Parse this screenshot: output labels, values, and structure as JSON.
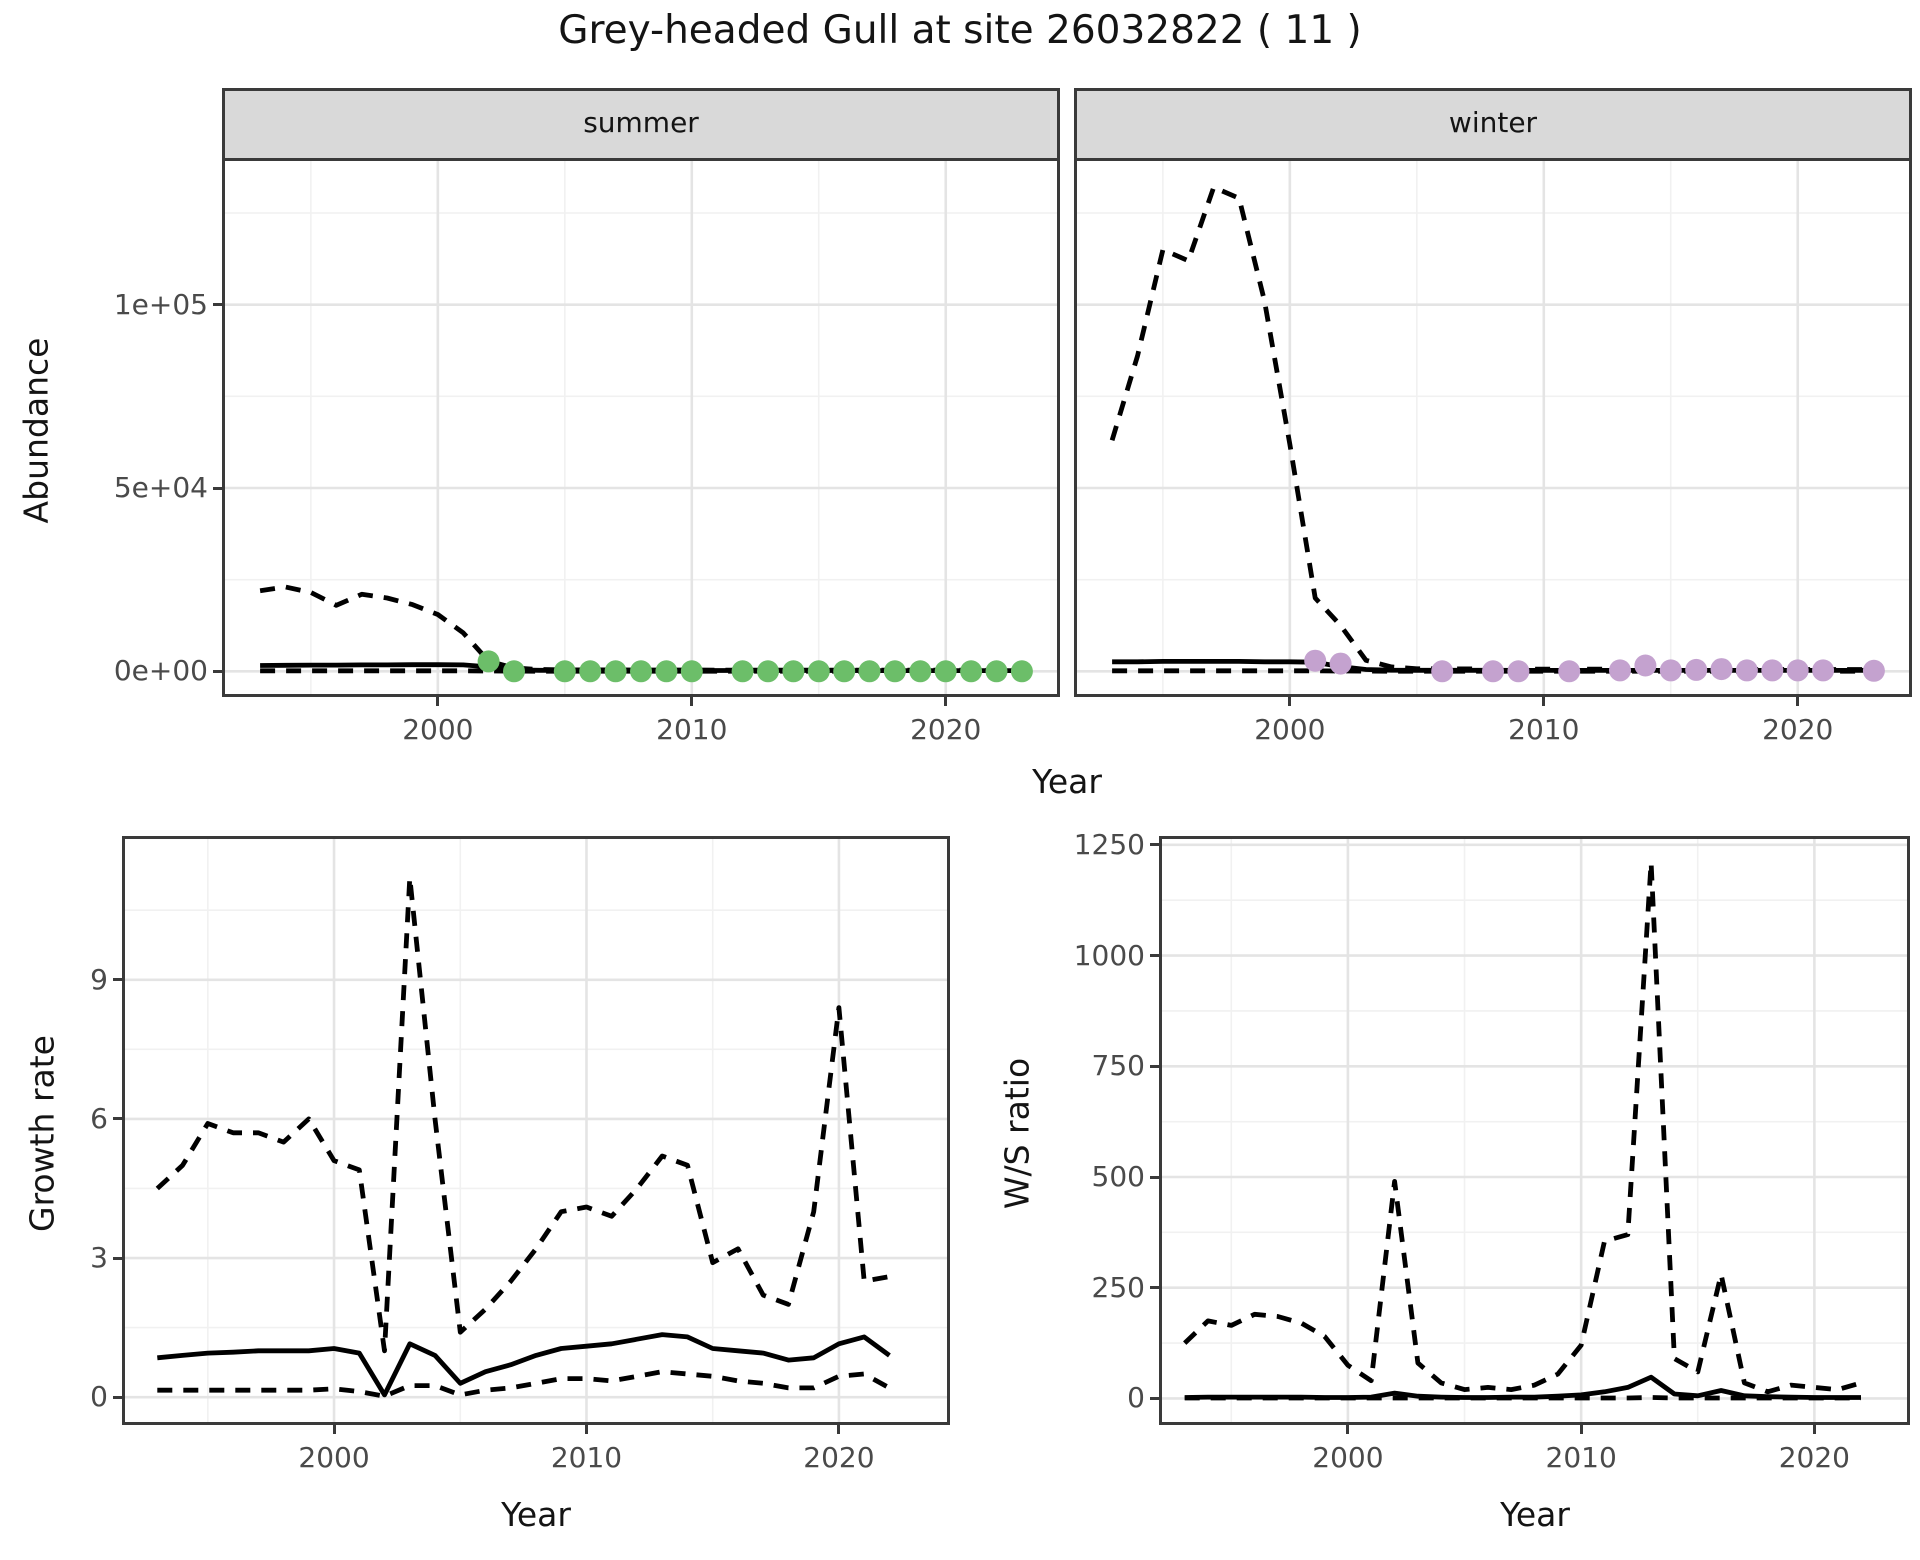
{
  "title": "Grey-headed Gull at site 26032822 ( 11 )",
  "top_row": {
    "xlabel": "Year",
    "ylabel": "Abundance",
    "facets": [
      "summer",
      "winter"
    ]
  },
  "colors": {
    "summer_point": "#6CBE69",
    "winter_point": "#C4A2CF",
    "line": "#000000",
    "strip_background": "#D9D9D9",
    "tick_text": "#4a4a4a",
    "grid_major": "#e4e4e4",
    "grid_minor": "#f1f1f1"
  },
  "chart_data": [
    {
      "id": "abundance-summer",
      "type": "line",
      "facet_label": "summer",
      "xlabel": "Year",
      "ylabel": "Abundance",
      "xlim": [
        1991.5,
        2024.5
      ],
      "ylim": [
        -7000,
        140000
      ],
      "xticks": {
        "values": [
          2000,
          2010,
          2020
        ],
        "labels": [
          "2000",
          "2010",
          "2020"
        ],
        "minor": [
          1995,
          2005,
          2015
        ]
      },
      "yticks": {
        "values": [
          0,
          50000,
          100000
        ],
        "labels": [
          "0e+00",
          "5e+04",
          "1e+05"
        ],
        "minor": [
          25000,
          75000,
          125000
        ]
      },
      "show_y_ticks": true,
      "show_x_ticks": true,
      "series": [
        {
          "name": "upper-ci",
          "style": "dashed",
          "x": [
            1993,
            1994,
            1995,
            1996,
            1997,
            1998,
            1999,
            2000,
            2001,
            2002,
            2003,
            2004,
            2005,
            2006,
            2007,
            2008,
            2009,
            2010,
            2011,
            2012,
            2013,
            2014,
            2015,
            2016,
            2017,
            2018,
            2019,
            2020,
            2021,
            2022,
            2023
          ],
          "y": [
            22000,
            23000,
            21500,
            18000,
            21000,
            20000,
            18200,
            15500,
            10500,
            2800,
            900,
            500,
            400,
            400,
            380,
            370,
            360,
            350,
            340,
            340,
            330,
            330,
            320,
            320,
            310,
            310,
            300,
            300,
            300,
            290,
            290
          ]
        },
        {
          "name": "mean",
          "style": "solid",
          "x": [
            1993,
            1994,
            1995,
            1996,
            1997,
            1998,
            1999,
            2000,
            2001,
            2002,
            2003,
            2004,
            2005,
            2006,
            2007,
            2008,
            2009,
            2010,
            2011,
            2012,
            2013,
            2014,
            2015,
            2016,
            2017,
            2018,
            2019,
            2020,
            2021,
            2022,
            2023
          ],
          "y": [
            1600,
            1650,
            1700,
            1700,
            1750,
            1750,
            1800,
            1800,
            1750,
            1200,
            400,
            280,
            260,
            250,
            250,
            250,
            240,
            240,
            230,
            230,
            230,
            220,
            220,
            220,
            210,
            210,
            210,
            200,
            200,
            200,
            200
          ]
        },
        {
          "name": "lower-ci",
          "style": "dashed",
          "x": [
            1993,
            1994,
            1995,
            1996,
            1997,
            1998,
            1999,
            2000,
            2001,
            2002,
            2003,
            2004,
            2005,
            2006,
            2007,
            2008,
            2009,
            2010,
            2011,
            2012,
            2013,
            2014,
            2015,
            2016,
            2017,
            2018,
            2019,
            2020,
            2021,
            2022,
            2023
          ],
          "y": [
            150,
            150,
            150,
            150,
            150,
            150,
            150,
            150,
            140,
            80,
            50,
            40,
            40,
            40,
            40,
            40,
            40,
            40,
            40,
            40,
            40,
            40,
            40,
            40,
            40,
            40,
            40,
            40,
            40,
            40,
            40
          ]
        }
      ],
      "points": {
        "name": "observed-counts",
        "color": "#6CBE69",
        "x": [
          2002,
          2003,
          2005,
          2006,
          2007,
          2008,
          2009,
          2010,
          2012,
          2013,
          2014,
          2015,
          2016,
          2017,
          2018,
          2019,
          2020,
          2021,
          2022,
          2023
        ],
        "y": [
          2700,
          0,
          0,
          0,
          0,
          0,
          0,
          0,
          0,
          0,
          0,
          0,
          0,
          0,
          0,
          0,
          0,
          0,
          0,
          0
        ]
      }
    },
    {
      "id": "abundance-winter",
      "type": "line",
      "facet_label": "winter",
      "xlabel": "Year",
      "ylabel": "Abundance",
      "xlim": [
        1991.5,
        2024.5
      ],
      "ylim": [
        -7000,
        140000
      ],
      "xticks": {
        "values": [
          2000,
          2010,
          2020
        ],
        "labels": [
          "2000",
          "2010",
          "2020"
        ],
        "minor": [
          1995,
          2005,
          2015
        ]
      },
      "yticks": {
        "values": [
          0,
          50000,
          100000
        ],
        "labels": [
          "0e+00",
          "5e+04",
          "1e+05"
        ],
        "minor": [
          25000,
          75000,
          125000
        ]
      },
      "show_y_ticks": false,
      "show_x_ticks": true,
      "series": [
        {
          "name": "upper-ci",
          "style": "dashed",
          "x": [
            1993,
            1994,
            1995,
            1996,
            1997,
            1998,
            1999,
            2000,
            2001,
            2002,
            2003,
            2004,
            2005,
            2006,
            2007,
            2008,
            2009,
            2010,
            2011,
            2012,
            2013,
            2014,
            2015,
            2016,
            2017,
            2018,
            2019,
            2020,
            2021,
            2022,
            2023
          ],
          "y": [
            63000,
            86000,
            115000,
            112000,
            132000,
            129000,
            101000,
            62000,
            20000,
            12500,
            3000,
            1200,
            700,
            700,
            650,
            650,
            600,
            600,
            600,
            600,
            600,
            600,
            550,
            550,
            550,
            550,
            500,
            500,
            500,
            500,
            500
          ]
        },
        {
          "name": "mean",
          "style": "solid",
          "x": [
            1993,
            1994,
            1995,
            1996,
            1997,
            1998,
            1999,
            2000,
            2001,
            2002,
            2003,
            2004,
            2005,
            2006,
            2007,
            2008,
            2009,
            2010,
            2011,
            2012,
            2013,
            2014,
            2015,
            2016,
            2017,
            2018,
            2019,
            2020,
            2021,
            2022,
            2023
          ],
          "y": [
            2600,
            2600,
            2700,
            2700,
            2700,
            2700,
            2600,
            2600,
            2500,
            1300,
            500,
            300,
            280,
            280,
            270,
            270,
            260,
            260,
            260,
            260,
            260,
            260,
            260,
            260,
            250,
            250,
            250,
            250,
            250,
            250,
            250
          ]
        },
        {
          "name": "lower-ci",
          "style": "dashed",
          "x": [
            1993,
            1994,
            1995,
            1996,
            1997,
            1998,
            1999,
            2000,
            2001,
            2002,
            2003,
            2004,
            2005,
            2006,
            2007,
            2008,
            2009,
            2010,
            2011,
            2012,
            2013,
            2014,
            2015,
            2016,
            2017,
            2018,
            2019,
            2020,
            2021,
            2022,
            2023
          ],
          "y": [
            150,
            150,
            150,
            150,
            150,
            150,
            150,
            150,
            140,
            80,
            50,
            40,
            40,
            40,
            40,
            40,
            40,
            40,
            40,
            40,
            40,
            40,
            40,
            40,
            40,
            40,
            40,
            40,
            40,
            40,
            40
          ]
        }
      ],
      "points": {
        "name": "observed-counts",
        "color": "#C4A2CF",
        "x": [
          2001,
          2002,
          2006,
          2008,
          2009,
          2011,
          2013,
          2014,
          2015,
          2016,
          2017,
          2018,
          2019,
          2020,
          2021,
          2023
        ],
        "y": [
          2900,
          2100,
          0,
          0,
          0,
          0,
          250,
          1600,
          250,
          400,
          600,
          250,
          250,
          250,
          250,
          150
        ]
      }
    },
    {
      "id": "growth-rate",
      "type": "line",
      "xlabel": "Year",
      "ylabel": "Growth rate",
      "xlim": [
        1991.6,
        2024.4
      ],
      "ylim": [
        -0.6,
        12.1
      ],
      "xticks": {
        "values": [
          2000,
          2010,
          2020
        ],
        "labels": [
          "2000",
          "2010",
          "2020"
        ],
        "minor": [
          1995,
          2005,
          2015
        ]
      },
      "yticks": {
        "values": [
          0,
          3,
          6,
          9
        ],
        "labels": [
          "0",
          "3",
          "6",
          "9"
        ],
        "minor": [
          1.5,
          4.5,
          7.5,
          10.5
        ]
      },
      "show_y_ticks": true,
      "show_x_ticks": true,
      "series": [
        {
          "name": "upper-ci",
          "style": "dashed",
          "x": [
            1993,
            1994,
            1995,
            1996,
            1997,
            1998,
            1999,
            2000,
            2001,
            2002,
            2003,
            2004,
            2005,
            2006,
            2007,
            2008,
            2009,
            2010,
            2011,
            2012,
            2013,
            2014,
            2015,
            2016,
            2017,
            2018,
            2019,
            2020,
            2021,
            2022
          ],
          "y": [
            4.5,
            5.0,
            5.9,
            5.7,
            5.7,
            5.5,
            6.0,
            5.1,
            4.9,
            1.0,
            11.2,
            6.0,
            1.4,
            1.9,
            2.5,
            3.2,
            4.0,
            4.1,
            3.9,
            4.5,
            5.2,
            5.0,
            2.9,
            3.2,
            2.2,
            2.0,
            4.0,
            8.4,
            2.5,
            2.6
          ]
        },
        {
          "name": "mean",
          "style": "solid",
          "x": [
            1993,
            1994,
            1995,
            1996,
            1997,
            1998,
            1999,
            2000,
            2001,
            2002,
            2003,
            2004,
            2005,
            2006,
            2007,
            2008,
            2009,
            2010,
            2011,
            2012,
            2013,
            2014,
            2015,
            2016,
            2017,
            2018,
            2019,
            2020,
            2021,
            2022
          ],
          "y": [
            0.85,
            0.9,
            0.95,
            0.97,
            1.0,
            1.0,
            1.0,
            1.05,
            0.95,
            0.05,
            1.15,
            0.9,
            0.3,
            0.55,
            0.7,
            0.9,
            1.05,
            1.1,
            1.15,
            1.25,
            1.35,
            1.3,
            1.05,
            1.0,
            0.95,
            0.8,
            0.85,
            1.15,
            1.3,
            0.9
          ]
        },
        {
          "name": "lower-ci",
          "style": "dashed",
          "x": [
            1993,
            1994,
            1995,
            1996,
            1997,
            1998,
            1999,
            2000,
            2001,
            2002,
            2003,
            2004,
            2005,
            2006,
            2007,
            2008,
            2009,
            2010,
            2011,
            2012,
            2013,
            2014,
            2015,
            2016,
            2017,
            2018,
            2019,
            2020,
            2021,
            2022
          ],
          "y": [
            0.15,
            0.15,
            0.15,
            0.15,
            0.15,
            0.15,
            0.15,
            0.18,
            0.12,
            0.02,
            0.25,
            0.25,
            0.05,
            0.15,
            0.2,
            0.3,
            0.4,
            0.4,
            0.35,
            0.45,
            0.55,
            0.5,
            0.45,
            0.35,
            0.3,
            0.2,
            0.2,
            0.45,
            0.5,
            0.2
          ]
        }
      ]
    },
    {
      "id": "ws-ratio",
      "type": "line",
      "xlabel": "Year",
      "ylabel": "W/S ratio",
      "xlim": [
        1991.9,
        2024.1
      ],
      "ylim": [
        -60,
        1270
      ],
      "xticks": {
        "values": [
          2000,
          2010,
          2020
        ],
        "labels": [
          "2000",
          "2010",
          "2020"
        ],
        "minor": [
          1995,
          2005,
          2015
        ]
      },
      "yticks": {
        "values": [
          0,
          250,
          500,
          750,
          1000,
          1250
        ],
        "labels": [
          "0",
          "250",
          "500",
          "750",
          "1000",
          "1250"
        ],
        "minor": [
          125,
          375,
          625,
          875,
          1125
        ]
      },
      "show_y_ticks": true,
      "show_x_ticks": true,
      "series": [
        {
          "name": "upper-ci",
          "style": "dashed",
          "x": [
            1993,
            1994,
            1995,
            1996,
            1997,
            1998,
            1999,
            2000,
            2001,
            2002,
            2003,
            2004,
            2005,
            2006,
            2007,
            2008,
            2009,
            2010,
            2011,
            2012,
            2013,
            2014,
            2015,
            2016,
            2017,
            2018,
            2019,
            2020,
            2021,
            2022
          ],
          "y": [
            125,
            175,
            165,
            190,
            185,
            170,
            140,
            75,
            40,
            490,
            80,
            35,
            20,
            25,
            20,
            30,
            55,
            120,
            355,
            370,
            1210,
            90,
            60,
            280,
            35,
            15,
            30,
            25,
            20,
            35
          ]
        },
        {
          "name": "mean",
          "style": "solid",
          "x": [
            1993,
            1994,
            1995,
            1996,
            1997,
            1998,
            1999,
            2000,
            2001,
            2002,
            2003,
            2004,
            2005,
            2006,
            2007,
            2008,
            2009,
            2010,
            2011,
            2012,
            2013,
            2014,
            2015,
            2016,
            2017,
            2018,
            2019,
            2020,
            2021,
            2022
          ],
          "y": [
            2,
            3,
            3,
            3,
            3,
            3,
            2,
            2,
            3,
            12,
            5,
            3,
            2,
            2,
            3,
            3,
            5,
            8,
            15,
            25,
            48,
            10,
            6,
            18,
            6,
            4,
            3,
            2,
            2,
            2
          ]
        },
        {
          "name": "lower-ci",
          "style": "dashed",
          "x": [
            1993,
            1994,
            1995,
            1996,
            1997,
            1998,
            1999,
            2000,
            2001,
            2002,
            2003,
            2004,
            2005,
            2006,
            2007,
            2008,
            2009,
            2010,
            2011,
            2012,
            2013,
            2014,
            2015,
            2016,
            2017,
            2018,
            2019,
            2020,
            2021,
            2022
          ],
          "y": [
            1,
            1,
            1,
            1,
            1,
            1,
            1,
            1,
            1,
            1,
            1,
            1,
            1,
            1,
            1,
            1,
            1,
            1,
            1,
            1,
            2,
            1,
            1,
            1,
            1,
            1,
            1,
            1,
            1,
            1
          ]
        }
      ]
    }
  ]
}
